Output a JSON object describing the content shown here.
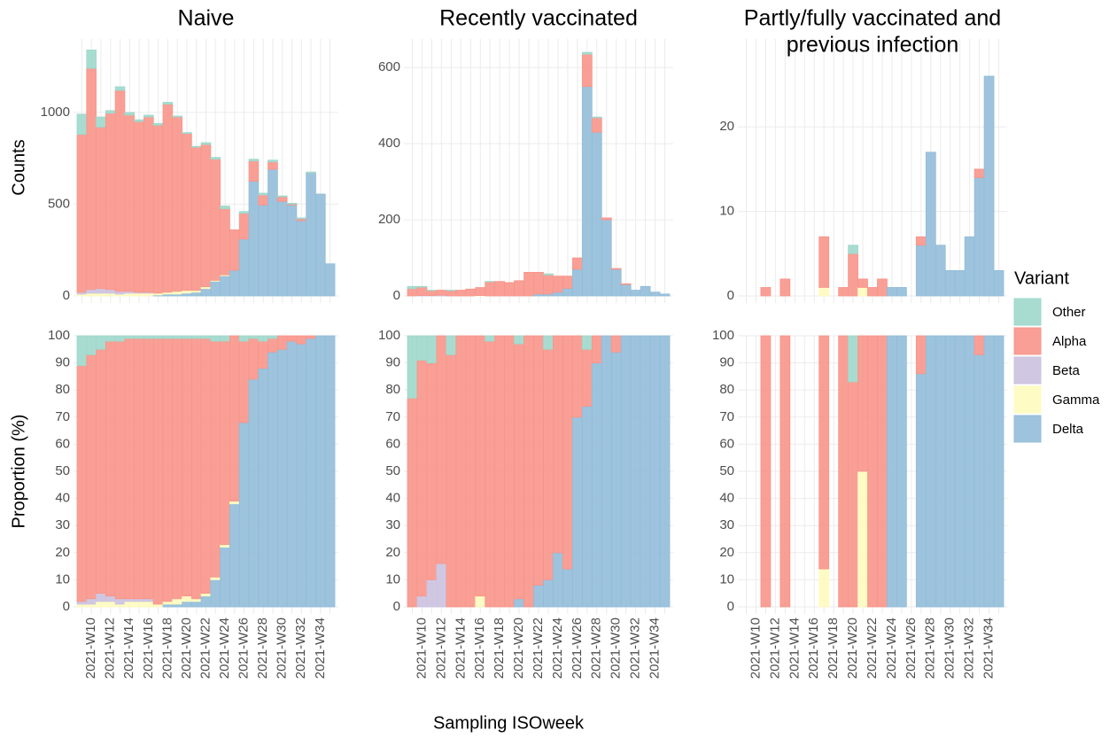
{
  "chart_data": [
    {
      "type": "bar",
      "title": "Naive",
      "ylabel": "Counts",
      "legend_title": "Variant",
      "ylim": [
        0,
        1400
      ],
      "yticks": [
        0,
        500,
        1000
      ],
      "series": [
        {
          "name": "Other",
          "color": "#9fd8cb",
          "values": [
            110,
            100,
            55,
            15,
            20,
            15,
            10,
            10,
            10,
            10,
            5,
            5,
            5,
            10,
            10,
            15,
            0,
            10,
            10,
            10,
            10,
            5,
            5,
            5,
            5,
            0,
            0
          ]
        },
        {
          "name": "Alpha",
          "color": "#f8958a",
          "values": [
            860,
            1205,
            880,
            960,
            1095,
            960,
            930,
            955,
            915,
            1025,
            950,
            855,
            780,
            775,
            660,
            360,
            220,
            140,
            110,
            55,
            40,
            25,
            5,
            10,
            0,
            0,
            0
          ]
        },
        {
          "name": "Beta",
          "color": "#cbc2e0",
          "values": [
            10,
            20,
            25,
            20,
            15,
            10,
            5,
            5,
            0,
            0,
            0,
            0,
            0,
            0,
            0,
            0,
            0,
            0,
            0,
            0,
            0,
            0,
            0,
            0,
            0,
            0,
            0
          ]
        },
        {
          "name": "Gamma",
          "color": "#fffbbf",
          "values": [
            10,
            15,
            15,
            15,
            10,
            15,
            15,
            15,
            10,
            10,
            15,
            15,
            10,
            10,
            5,
            5,
            0,
            0,
            0,
            0,
            0,
            0,
            0,
            0,
            0,
            0,
            0
          ]
        },
        {
          "name": "Delta",
          "color": "#92bcd9",
          "values": [
            0,
            0,
            0,
            0,
            0,
            0,
            0,
            0,
            5,
            10,
            10,
            15,
            20,
            40,
            80,
            110,
            140,
            310,
            625,
            495,
            690,
            515,
            495,
            410,
            670,
            555,
            175
          ]
        }
      ]
    },
    {
      "type": "bar",
      "title": "Recently vaccinated",
      "ylim": [
        0,
        675
      ],
      "yticks": [
        0,
        200,
        400,
        600
      ],
      "series": [
        {
          "values": [
            6,
            2,
            1,
            0,
            1,
            0,
            0,
            0,
            1,
            0,
            0,
            0,
            0,
            0,
            3,
            0,
            0,
            0,
            5,
            2,
            0,
            0,
            0,
            0,
            0,
            0,
            0
          ]
        },
        {
          "values": [
            19,
            22,
            13,
            13,
            14,
            15,
            18,
            21,
            37,
            38,
            35,
            40,
            62,
            57,
            50,
            42,
            32,
            30,
            85,
            38,
            5,
            2,
            2,
            0,
            0,
            0,
            0
          ]
        },
        {
          "values": [
            0,
            1,
            1,
            2,
            0,
            0,
            0,
            0,
            0,
            0,
            0,
            0,
            0,
            0,
            0,
            0,
            0,
            0,
            0,
            0,
            0,
            0,
            0,
            0,
            0,
            0,
            0
          ]
        },
        {
          "values": [
            0,
            0,
            0,
            0,
            0,
            0,
            0,
            1,
            0,
            0,
            0,
            0,
            0,
            0,
            0,
            0,
            0,
            0,
            0,
            0,
            0,
            0,
            0,
            0,
            0,
            0,
            0
          ]
        },
        {
          "values": [
            0,
            0,
            0,
            0,
            0,
            0,
            0,
            0,
            0,
            0,
            0,
            0,
            0,
            5,
            5,
            10,
            20,
            70,
            550,
            430,
            200,
            70,
            30,
            15,
            25,
            10,
            5
          ]
        }
      ]
    },
    {
      "type": "bar",
      "title": [
        "Partly/fully vaccinated and",
        "previous infection"
      ],
      "ylim": [
        0,
        30.4
      ],
      "yticks": [
        0,
        10,
        20
      ],
      "series": [
        {
          "values": [
            null,
            null,
            0,
            null,
            0,
            null,
            null,
            null,
            0,
            null,
            0,
            1,
            0,
            0,
            0,
            0,
            0,
            null,
            0,
            0,
            0,
            0,
            0,
            0,
            0,
            0,
            0
          ]
        },
        {
          "values": [
            null,
            null,
            1,
            null,
            2,
            null,
            null,
            null,
            6,
            null,
            1,
            5,
            1,
            1,
            2,
            0,
            0,
            null,
            1,
            0,
            0,
            0,
            0,
            0,
            1,
            0,
            0
          ]
        },
        {
          "values": [
            null,
            null,
            0,
            null,
            0,
            null,
            null,
            null,
            0,
            null,
            0,
            0,
            0,
            0,
            0,
            0,
            0,
            null,
            0,
            0,
            0,
            0,
            0,
            0,
            0,
            0,
            0
          ]
        },
        {
          "values": [
            null,
            null,
            0,
            null,
            0,
            null,
            null,
            null,
            1,
            null,
            0,
            0,
            1,
            0,
            0,
            0,
            0,
            null,
            0,
            0,
            0,
            0,
            0,
            0,
            0,
            0,
            0
          ]
        },
        {
          "values": [
            null,
            null,
            0,
            null,
            0,
            null,
            null,
            null,
            0,
            null,
            0,
            0,
            0,
            0,
            0,
            1,
            1,
            null,
            6,
            17,
            6,
            3,
            3,
            7,
            14,
            26,
            3
          ]
        }
      ]
    },
    {
      "type": "bar",
      "ylabel": "Proportion (%)",
      "categories": [
        null,
        "2021-W10",
        null,
        "2021-W12",
        null,
        "2021-W14",
        null,
        "2021-W16",
        null,
        "2021-W18",
        null,
        "2021-W20",
        null,
        "2021-W22",
        null,
        "2021-W24",
        null,
        "2021-W26",
        null,
        "2021-W28",
        null,
        "2021-W30",
        null,
        "2021-W32",
        null,
        "2021-W34",
        null
      ],
      "ylim": [
        0,
        100
      ],
      "yticks": [
        0,
        10,
        20,
        30,
        40,
        50,
        60,
        70,
        80,
        90,
        100
      ],
      "series": [
        {
          "values": [
            11,
            7,
            5,
            2,
            2,
            1,
            1,
            1,
            1,
            1,
            1,
            1,
            1,
            1,
            2,
            2,
            0,
            2,
            1,
            2,
            1,
            0,
            0,
            0,
            0,
            0,
            0
          ]
        },
        {
          "values": [
            87,
            90,
            90,
            94,
            95,
            96,
            96,
            96,
            98,
            97,
            96,
            95,
            96,
            94,
            87,
            75,
            61,
            30,
            15,
            10,
            5,
            5,
            2,
            3,
            1,
            0,
            0
          ]
        },
        {
          "values": [
            1,
            2,
            3,
            2,
            2,
            1,
            1,
            1,
            0,
            0,
            0,
            0,
            0,
            0,
            0,
            0,
            0,
            0,
            0,
            0,
            0,
            0,
            0,
            0,
            0,
            0,
            0
          ]
        },
        {
          "values": [
            1,
            1,
            2,
            2,
            1,
            2,
            2,
            2,
            1,
            1,
            2,
            2,
            1,
            1,
            1,
            1,
            1,
            0,
            0,
            0,
            0,
            0,
            0,
            0,
            0,
            0,
            0
          ]
        },
        {
          "values": [
            0,
            0,
            0,
            0,
            0,
            0,
            0,
            0,
            0,
            1,
            1,
            2,
            2,
            4,
            10,
            22,
            38,
            68,
            84,
            88,
            94,
            95,
            98,
            97,
            99,
            100,
            100
          ]
        }
      ]
    },
    {
      "type": "bar",
      "xlabel": "Sampling ISOweek",
      "categories": [
        null,
        "2021-W10",
        null,
        "2021-W12",
        null,
        "2021-W14",
        null,
        "2021-W16",
        null,
        "2021-W18",
        null,
        "2021-W20",
        null,
        "2021-W22",
        null,
        "2021-W24",
        null,
        "2021-W26",
        null,
        "2021-W28",
        null,
        "2021-W30",
        null,
        "2021-W32",
        null,
        "2021-W34",
        null
      ],
      "ylim": [
        0,
        100
      ],
      "yticks": [
        0,
        10,
        20,
        30,
        40,
        50,
        60,
        70,
        80,
        90,
        100
      ],
      "series": [
        {
          "values": [
            23,
            9,
            10,
            0,
            7,
            0,
            0,
            0,
            2,
            0,
            0,
            3,
            0,
            0,
            5,
            0,
            0,
            0,
            5,
            0,
            0,
            0,
            0,
            0,
            0,
            0,
            0
          ]
        },
        {
          "values": [
            77,
            87,
            80,
            84,
            93,
            100,
            100,
            96,
            98,
            100,
            100,
            94,
            100,
            92,
            85,
            80,
            86,
            30,
            21,
            10,
            0,
            6,
            0,
            0,
            0,
            0,
            0
          ]
        },
        {
          "values": [
            0,
            4,
            10,
            16,
            0,
            0,
            0,
            0,
            0,
            0,
            0,
            0,
            0,
            0,
            0,
            0,
            0,
            0,
            0,
            0,
            0,
            0,
            0,
            0,
            0,
            0,
            0
          ]
        },
        {
          "values": [
            0,
            0,
            0,
            0,
            0,
            0,
            0,
            4,
            0,
            0,
            0,
            0,
            0,
            0,
            0,
            0,
            0,
            0,
            0,
            0,
            0,
            0,
            0,
            0,
            0,
            0,
            0
          ]
        },
        {
          "values": [
            0,
            0,
            0,
            0,
            0,
            0,
            0,
            0,
            0,
            0,
            0,
            3,
            0,
            8,
            10,
            20,
            14,
            70,
            74,
            90,
            100,
            94,
            100,
            100,
            100,
            100,
            100
          ]
        }
      ]
    },
    {
      "type": "bar",
      "categories": [
        null,
        "2021-W10",
        null,
        "2021-W12",
        null,
        "2021-W14",
        null,
        "2021-W16",
        null,
        "2021-W18",
        null,
        "2021-W20",
        null,
        "2021-W22",
        null,
        "2021-W24",
        null,
        "2021-W26",
        null,
        "2021-W28",
        null,
        "2021-W30",
        null,
        "2021-W32",
        null,
        "2021-W34",
        null
      ],
      "ylim": [
        0,
        100
      ],
      "yticks": [
        0,
        10,
        20,
        30,
        40,
        50,
        60,
        70,
        80,
        90,
        100
      ],
      "series": [
        {
          "values": [
            null,
            null,
            0,
            null,
            0,
            null,
            null,
            null,
            0,
            null,
            0,
            17,
            0,
            0,
            0,
            0,
            0,
            null,
            0,
            0,
            0,
            0,
            0,
            0,
            0,
            0,
            0
          ]
        },
        {
          "values": [
            null,
            null,
            100,
            null,
            100,
            null,
            null,
            null,
            86,
            null,
            100,
            83,
            50,
            100,
            100,
            0,
            0,
            null,
            14,
            0,
            0,
            0,
            0,
            0,
            7,
            0,
            0
          ]
        },
        {
          "values": [
            null,
            null,
            0,
            null,
            0,
            null,
            null,
            null,
            0,
            null,
            0,
            0,
            0,
            0,
            0,
            0,
            0,
            null,
            0,
            0,
            0,
            0,
            0,
            0,
            0,
            0,
            0
          ]
        },
        {
          "values": [
            null,
            null,
            0,
            null,
            0,
            null,
            null,
            null,
            14,
            null,
            0,
            0,
            50,
            0,
            0,
            0,
            0,
            null,
            0,
            0,
            0,
            0,
            0,
            0,
            0,
            0,
            0
          ]
        },
        {
          "values": [
            null,
            null,
            0,
            null,
            0,
            null,
            null,
            null,
            0,
            null,
            0,
            0,
            0,
            0,
            0,
            100,
            100,
            null,
            86,
            100,
            100,
            100,
            100,
            100,
            93,
            100,
            100
          ]
        }
      ]
    }
  ]
}
